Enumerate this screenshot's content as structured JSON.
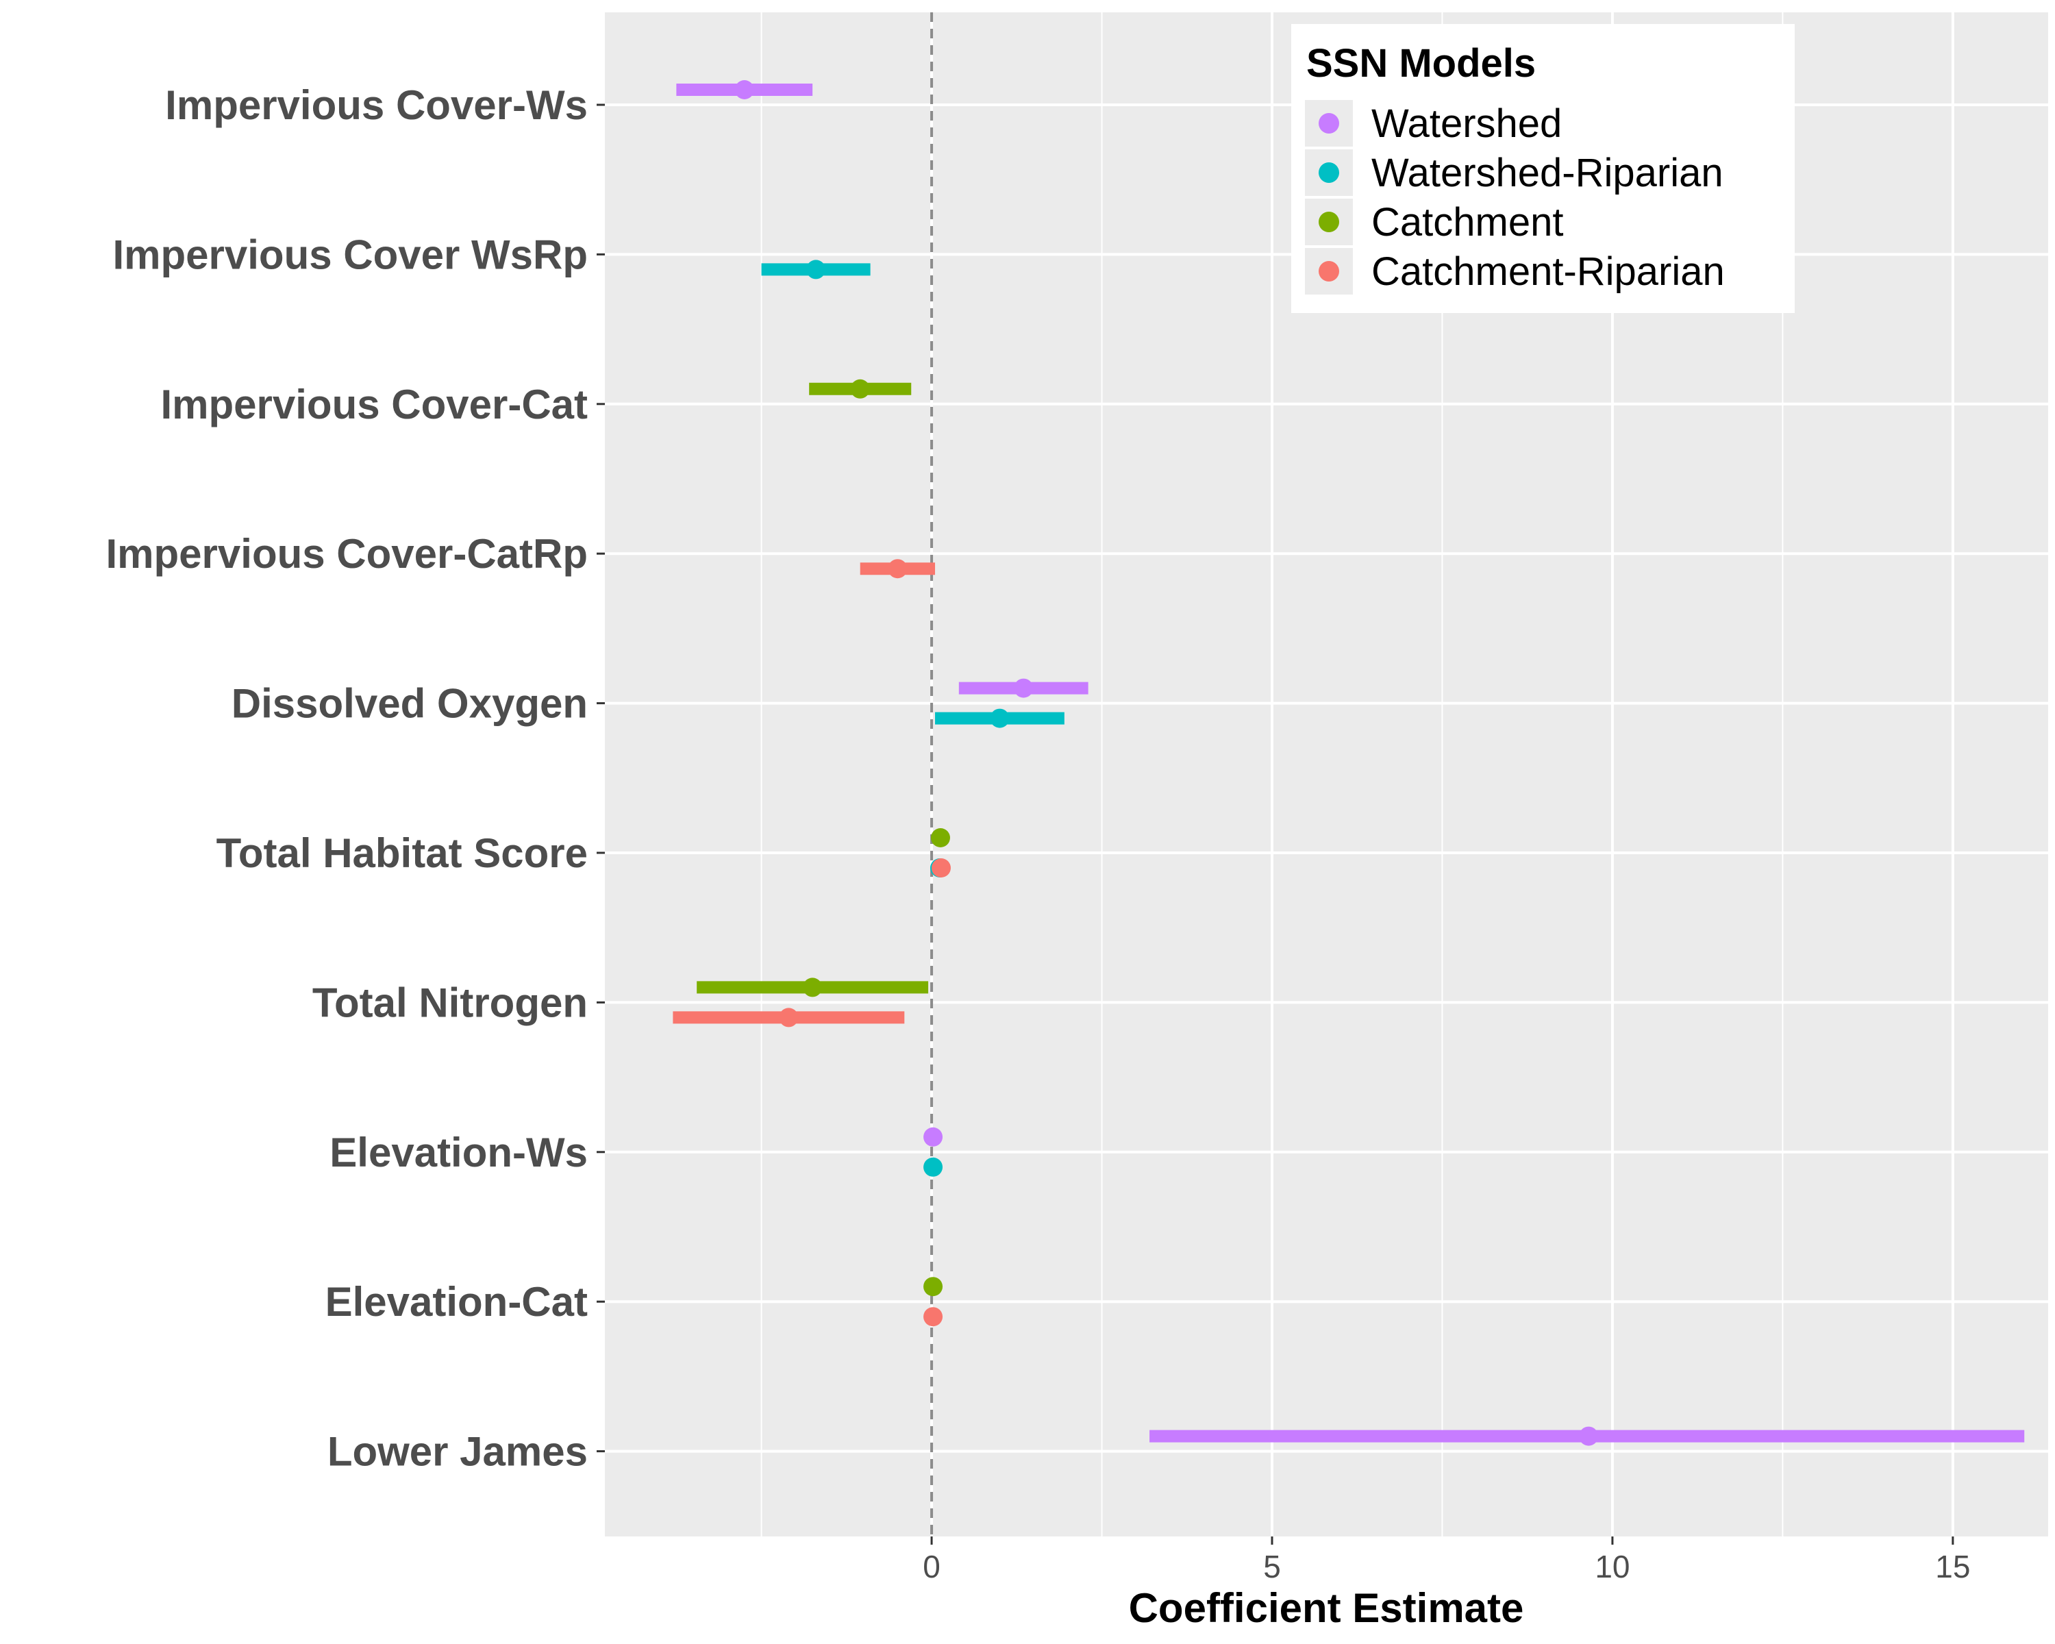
{
  "chart_data": {
    "type": "scatter",
    "subtype": "coefficient-plot",
    "title": "",
    "xlabel": "Coefficient Estimate",
    "ylabel": "",
    "xlim": [
      -4.8,
      16.4
    ],
    "x_ticks": [
      0,
      5,
      10,
      15
    ],
    "x_tick_labels": [
      "0",
      "5",
      "10",
      "15"
    ],
    "reference_line": 0,
    "grid": true,
    "categories": [
      "Impervious Cover-Ws",
      "Impervious Cover WsRp",
      "Impervious Cover-Cat",
      "Impervious Cover-CatRp",
      "Dissolved Oxygen",
      "Total Habitat Score",
      "Total Nitrogen",
      "Elevation-Ws",
      "Elevation-Cat",
      "Lower James"
    ],
    "legend": {
      "title": "SSN Models",
      "position": "top-right",
      "entries": [
        "Watershed",
        "Watershed-Riparian",
        "Catchment",
        "Catchment-Riparian"
      ]
    },
    "series": [
      {
        "name": "Watershed",
        "color": "#C77CFF",
        "points": [
          {
            "category": "Impervious Cover-Ws",
            "estimate": -2.75,
            "lower": -3.75,
            "upper": -1.75
          },
          {
            "category": "Dissolved Oxygen",
            "estimate": 1.35,
            "lower": 0.4,
            "upper": 2.3
          },
          {
            "category": "Elevation-Ws",
            "estimate": 0.02,
            "lower": 0.0,
            "upper": 0.04
          },
          {
            "category": "Lower James",
            "estimate": 9.65,
            "lower": 3.2,
            "upper": 16.05
          }
        ]
      },
      {
        "name": "Watershed-Riparian",
        "color": "#00BFC4",
        "points": [
          {
            "category": "Impervious Cover WsRp",
            "estimate": -1.7,
            "lower": -2.5,
            "upper": -0.9
          },
          {
            "category": "Dissolved Oxygen",
            "estimate": 1.0,
            "lower": 0.05,
            "upper": 1.95
          },
          {
            "category": "Total Habitat Score",
            "estimate": 0.12,
            "lower": 0.1,
            "upper": 0.14
          },
          {
            "category": "Elevation-Ws",
            "estimate": 0.02,
            "lower": 0.0,
            "upper": 0.04
          }
        ]
      },
      {
        "name": "Catchment",
        "color": "#7CAE00",
        "points": [
          {
            "category": "Impervious Cover-Cat",
            "estimate": -1.05,
            "lower": -1.8,
            "upper": -0.3
          },
          {
            "category": "Total Habitat Score",
            "estimate": 0.13,
            "lower": 0.11,
            "upper": 0.15
          },
          {
            "category": "Total Nitrogen",
            "estimate": -1.75,
            "lower": -3.45,
            "upper": -0.05
          },
          {
            "category": "Elevation-Cat",
            "estimate": 0.02,
            "lower": 0.0,
            "upper": 0.04
          }
        ]
      },
      {
        "name": "Catchment-Riparian",
        "color": "#F8766D",
        "points": [
          {
            "category": "Impervious Cover-CatRp",
            "estimate": -0.5,
            "lower": -1.05,
            "upper": 0.05
          },
          {
            "category": "Total Habitat Score",
            "estimate": 0.14,
            "lower": 0.12,
            "upper": 0.16
          },
          {
            "category": "Total Nitrogen",
            "estimate": -2.1,
            "lower": -3.8,
            "upper": -0.4
          },
          {
            "category": "Elevation-Cat",
            "estimate": 0.02,
            "lower": 0.0,
            "upper": 0.04
          }
        ]
      }
    ]
  }
}
